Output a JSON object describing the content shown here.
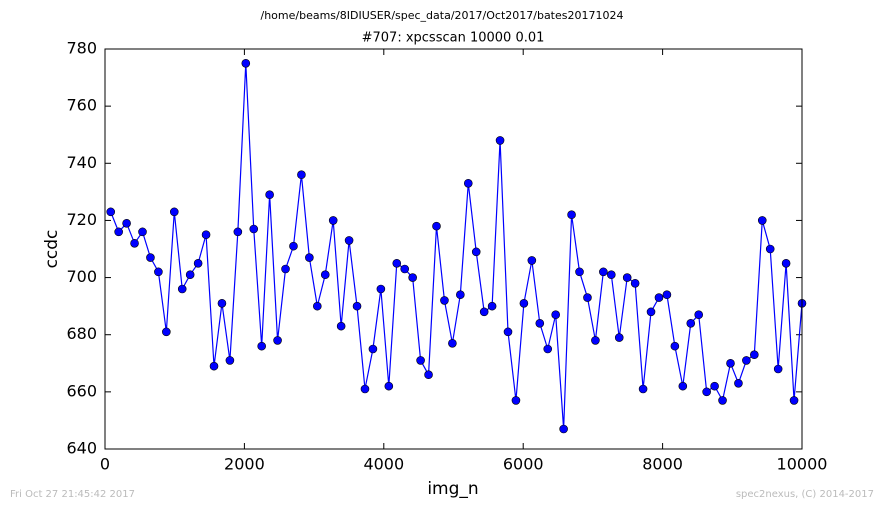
{
  "chart_data": {
    "type": "line",
    "title": "/home/beams/8IDIUSER/spec_data/2017/Oct2017/bates20171024",
    "subtitle": "#707: xpcsscan 10000 0.01",
    "xlabel": "img_n",
    "ylabel": "ccdc",
    "x": [
      82,
      196,
      310,
      424,
      538,
      652,
      766,
      880,
      994,
      1108,
      1222,
      1336,
      1450,
      1564,
      1678,
      1792,
      1906,
      2020,
      2134,
      2248,
      2362,
      2476,
      2590,
      2704,
      2818,
      2932,
      3046,
      3160,
      3274,
      3388,
      3502,
      3616,
      3730,
      3844,
      3958,
      4072,
      4186,
      4300,
      4414,
      4528,
      4642,
      4756,
      4870,
      4984,
      5098,
      5212,
      5326,
      5440,
      5554,
      5668,
      5782,
      5896,
      6010,
      6124,
      6238,
      6352,
      6466,
      6580,
      6694,
      6808,
      6922,
      7036,
      7150,
      7264,
      7378,
      7492,
      7606,
      7720,
      7834,
      7948,
      8062,
      8176,
      8290,
      8404,
      8518,
      8632,
      8746,
      8860,
      8974,
      9088,
      9202,
      9316,
      9430,
      9544,
      9658,
      9772,
      9886,
      10000
    ],
    "series": [
      {
        "color": "#0000ff",
        "values": [
          723,
          716,
          719,
          712,
          716,
          707,
          702,
          681,
          723,
          696,
          701,
          705,
          715,
          669,
          691,
          671,
          716,
          775,
          717,
          676,
          729,
          678,
          703,
          711,
          736,
          707,
          690,
          701,
          720,
          683,
          713,
          690,
          661,
          675,
          696,
          662,
          705,
          703,
          700,
          671,
          666,
          718,
          692,
          677,
          694,
          733,
          709,
          688,
          690,
          748,
          681,
          657,
          691,
          706,
          684,
          675,
          687,
          647,
          722,
          702,
          693,
          678,
          702,
          701,
          679,
          700,
          698,
          661,
          688,
          693,
          694,
          676,
          662,
          684,
          687,
          660,
          662,
          657,
          670,
          663,
          671,
          673,
          720,
          710,
          668,
          705,
          657,
          691
        ]
      }
    ],
    "xlim": [
      0,
      10000
    ],
    "xticks": [
      0,
      2000,
      4000,
      6000,
      8000,
      10000
    ],
    "ylim": [
      640,
      780
    ],
    "yticks": [
      640,
      660,
      680,
      700,
      720,
      740,
      760,
      780
    ],
    "grid": false
  },
  "footer": {
    "left": "Fri Oct 27 21:45:42 2017",
    "right": "spec2nexus, (C) 2014-2017"
  }
}
